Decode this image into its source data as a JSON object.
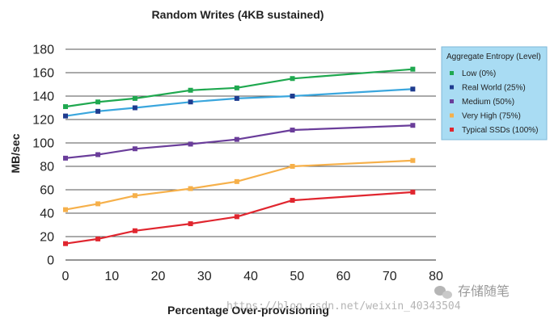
{
  "chart_data": {
    "type": "line",
    "title": "Random Writes (4KB sustained)",
    "xlabel": "Percentage Over-provisioning",
    "ylabel": "MB/sec",
    "xlim": [
      0,
      80
    ],
    "ylim": [
      0,
      180
    ],
    "xticks": [
      0,
      10,
      20,
      30,
      40,
      50,
      60,
      70,
      80
    ],
    "yticks": [
      0,
      20,
      40,
      60,
      80,
      100,
      120,
      140,
      160,
      180
    ],
    "grid": "horizontal",
    "legend_title": "Aggregate Entropy (Level)",
    "legend_position": "top-right",
    "x": [
      0,
      7,
      15,
      27,
      37,
      49,
      75
    ],
    "series": [
      {
        "name": "Low (0%)",
        "color": "#1fa84f",
        "values": [
          131,
          135,
          138,
          145,
          147,
          155,
          163
        ]
      },
      {
        "name": "Real World (25%)",
        "color": "#3aa6dd",
        "marker_color": "#1f3c8f",
        "values": [
          123,
          127,
          130,
          135,
          138,
          140,
          146
        ]
      },
      {
        "name": "Medium (50%)",
        "color": "#6a3d9a",
        "values": [
          87,
          90,
          95,
          99,
          103,
          111,
          115
        ]
      },
      {
        "name": "Very High (75%)",
        "color": "#f6b04a",
        "values": [
          43,
          48,
          55,
          61,
          67,
          80,
          85
        ]
      },
      {
        "name": "Typical SSDs (100%)",
        "color": "#e0262f",
        "values": [
          14,
          18,
          25,
          31,
          37,
          51,
          58
        ]
      }
    ]
  },
  "watermark": {
    "brand": "存储随笔",
    "url": "https://blog.csdn.net/weixin_40343504"
  }
}
